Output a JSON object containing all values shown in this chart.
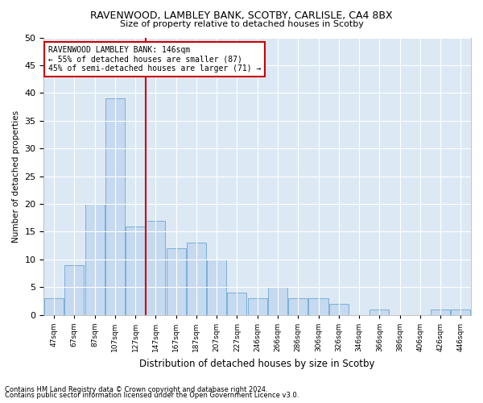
{
  "title": "RAVENWOOD, LAMBLEY BANK, SCOTBY, CARLISLE, CA4 8BX",
  "subtitle": "Size of property relative to detached houses in Scotby",
  "xlabel": "Distribution of detached houses by size in Scotby",
  "ylabel": "Number of detached properties",
  "footer_line1": "Contains HM Land Registry data © Crown copyright and database right 2024.",
  "footer_line2": "Contains public sector information licensed under the Open Government Licence v3.0.",
  "annotation_line1": "RAVENWOOD LAMBLEY BANK: 146sqm",
  "annotation_line2": "← 55% of detached houses are smaller (87)",
  "annotation_line3": "45% of semi-detached houses are larger (71) →",
  "bar_labels": [
    "47sqm",
    "67sqm",
    "87sqm",
    "107sqm",
    "127sqm",
    "147sqm",
    "167sqm",
    "187sqm",
    "207sqm",
    "227sqm",
    "246sqm",
    "266sqm",
    "286sqm",
    "306sqm",
    "326sqm",
    "346sqm",
    "366sqm",
    "386sqm",
    "406sqm",
    "426sqm",
    "446sqm"
  ],
  "bar_values": [
    3,
    9,
    20,
    39,
    16,
    17,
    12,
    13,
    10,
    4,
    3,
    5,
    3,
    3,
    2,
    0,
    1,
    0,
    0,
    1,
    1
  ],
  "bar_color": "#c5d9f0",
  "bar_edge_color": "#7bafd4",
  "vline_x_index": 5,
  "vline_color": "#cc0000",
  "annotation_box_facecolor": "#ffffff",
  "annotation_box_edgecolor": "#cc0000",
  "plot_bg_color": "#dce9f5",
  "fig_bg_color": "#ffffff",
  "ylim": [
    0,
    50
  ],
  "yticks": [
    0,
    5,
    10,
    15,
    20,
    25,
    30,
    35,
    40,
    45,
    50
  ]
}
